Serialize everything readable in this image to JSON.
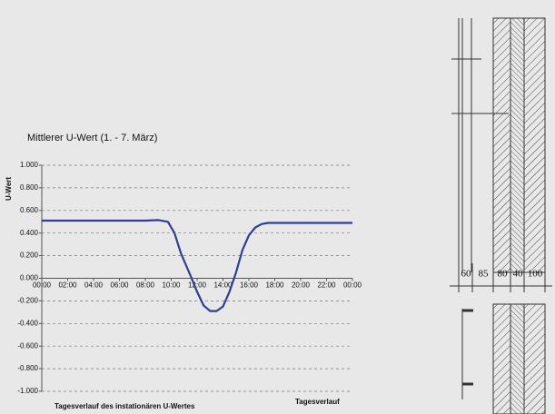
{
  "chart_data": {
    "type": "line",
    "title": "Mittlerer U-Wert (1. - 7. März)",
    "y_label": "U-Wert",
    "x_label": "Tagesverlauf",
    "caption": "Tagesverlauf des instationären U-Wertes",
    "x": [
      0,
      2,
      4,
      6,
      8,
      9,
      9.75,
      10.25,
      10.75,
      11.5,
      12,
      12.5,
      13,
      13.5,
      14,
      14.5,
      15,
      15.5,
      16,
      16.5,
      17,
      17.5,
      18,
      20,
      22,
      24
    ],
    "values": [
      0.51,
      0.51,
      0.51,
      0.51,
      0.51,
      0.515,
      0.5,
      0.4,
      0.22,
      0.02,
      -0.12,
      -0.24,
      -0.29,
      -0.29,
      -0.25,
      -0.12,
      0.05,
      0.25,
      0.38,
      0.45,
      0.48,
      0.49,
      0.49,
      0.49,
      0.49,
      0.49
    ],
    "color": "#2e3d99",
    "xlim": [
      0,
      24
    ],
    "xticks": [
      {
        "value": 0,
        "label": "00:00"
      },
      {
        "value": 2,
        "label": "02:00"
      },
      {
        "value": 4,
        "label": "04:00"
      },
      {
        "value": 6,
        "label": "06:00"
      },
      {
        "value": 8,
        "label": "08:00"
      },
      {
        "value": 10,
        "label": "10:00"
      },
      {
        "value": 12,
        "label": "12:00"
      },
      {
        "value": 14,
        "label": "14:00"
      },
      {
        "value": 16,
        "label": "16:00"
      },
      {
        "value": 18,
        "label": "18:00"
      },
      {
        "value": 20,
        "label": "20:00"
      },
      {
        "value": 22,
        "label": "22:00"
      },
      {
        "value": 24,
        "label": "00:00"
      }
    ],
    "ylim": [
      -1,
      1
    ],
    "yticks": [
      {
        "value": 1,
        "label": "1.000"
      },
      {
        "value": 0.8,
        "label": "0.800"
      },
      {
        "value": 0.6,
        "label": "0.600"
      },
      {
        "value": 0.4,
        "label": "0.400"
      },
      {
        "value": 0.2,
        "label": "0.200"
      },
      {
        "value": 0,
        "label": "0.000"
      },
      {
        "value": -0.2,
        "label": "-0.200"
      },
      {
        "value": -0.4,
        "label": "-0.400"
      },
      {
        "value": -0.6,
        "label": "-0.600"
      },
      {
        "value": -0.8,
        "label": "-0.800"
      },
      {
        "value": -1,
        "label": "-1.000"
      }
    ],
    "grid": true
  },
  "diagram": {
    "dimensions": [
      60,
      85,
      80,
      40,
      100
    ]
  }
}
